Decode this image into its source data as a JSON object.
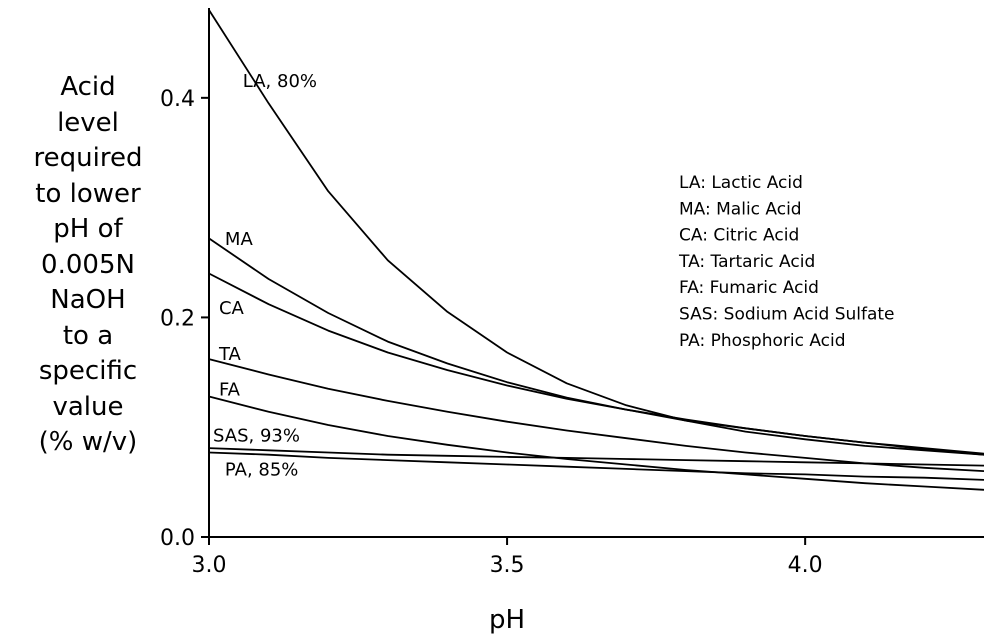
{
  "chart_data": {
    "type": "line",
    "title": "",
    "xlabel": "pH",
    "ylabel_lines": [
      "Acid",
      "level",
      "required",
      "to lower",
      "pH of",
      "0.005N",
      "NaOH",
      "to a",
      "specific",
      "value",
      "(% w/v)"
    ],
    "xlim": [
      3.0,
      4.3
    ],
    "ylim": [
      0.0,
      0.48
    ],
    "x_ticks": [
      3.0,
      3.5,
      4.0
    ],
    "x_tick_labels": [
      "3.0",
      "3.5",
      "4.0"
    ],
    "y_ticks": [
      0.0,
      0.2,
      0.4
    ],
    "y_tick_labels": [
      "0.0",
      "0.2",
      "0.4"
    ],
    "grid": false,
    "legend_position": "right",
    "legend": [
      "LA: Lactic Acid",
      "MA: Malic Acid",
      "CA: Citric Acid",
      "TA: Tartaric Acid",
      "FA: Fumaric Acid",
      "SAS: Sodium Acid Sulfate",
      "PA: Phosphoric Acid"
    ],
    "series": [
      {
        "name": "LA, 80%",
        "x": [
          3.0,
          3.1,
          3.2,
          3.3,
          3.4,
          3.5,
          3.6,
          3.7,
          3.8,
          3.9,
          4.0,
          4.1,
          4.2,
          4.3
        ],
        "y": [
          0.48,
          0.395,
          0.315,
          0.252,
          0.205,
          0.168,
          0.14,
          0.12,
          0.106,
          0.096,
          0.089,
          0.083,
          0.079,
          0.075
        ]
      },
      {
        "name": "MA",
        "x": [
          3.0,
          3.1,
          3.2,
          3.3,
          3.4,
          3.5,
          3.6,
          3.7,
          3.8,
          3.9,
          4.0,
          4.1,
          4.2,
          4.3
        ],
        "y": [
          0.272,
          0.235,
          0.204,
          0.178,
          0.158,
          0.141,
          0.127,
          0.116,
          0.106,
          0.099,
          0.092,
          0.086,
          0.081,
          0.076
        ]
      },
      {
        "name": "CA",
        "x": [
          3.0,
          3.1,
          3.2,
          3.3,
          3.4,
          3.5,
          3.6,
          3.7,
          3.8,
          3.9,
          4.0,
          4.1,
          4.2,
          4.3
        ],
        "y": [
          0.24,
          0.212,
          0.188,
          0.168,
          0.152,
          0.138,
          0.126,
          0.116,
          0.107,
          0.099,
          0.092,
          0.086,
          0.08,
          0.075
        ]
      },
      {
        "name": "TA",
        "x": [
          3.0,
          3.1,
          3.2,
          3.3,
          3.4,
          3.5,
          3.6,
          3.7,
          3.8,
          3.9,
          4.0,
          4.1,
          4.2,
          4.3
        ],
        "y": [
          0.162,
          0.148,
          0.135,
          0.124,
          0.114,
          0.105,
          0.097,
          0.09,
          0.083,
          0.077,
          0.072,
          0.067,
          0.063,
          0.06
        ]
      },
      {
        "name": "FA",
        "x": [
          3.0,
          3.1,
          3.2,
          3.3,
          3.4,
          3.5,
          3.6,
          3.7,
          3.8,
          3.9,
          4.0,
          4.1,
          4.2,
          4.3
        ],
        "y": [
          0.128,
          0.114,
          0.102,
          0.092,
          0.084,
          0.077,
          0.071,
          0.066,
          0.061,
          0.057,
          0.053,
          0.049,
          0.046,
          0.043
        ]
      },
      {
        "name": "SAS, 93%",
        "x": [
          3.0,
          3.1,
          3.2,
          3.3,
          3.4,
          3.5,
          3.6,
          3.7,
          3.8,
          3.9,
          4.0,
          4.1,
          4.2,
          4.3
        ],
        "y": [
          0.081,
          0.079,
          0.077,
          0.075,
          0.074,
          0.073,
          0.072,
          0.071,
          0.07,
          0.069,
          0.068,
          0.067,
          0.066,
          0.065
        ]
      },
      {
        "name": "PA, 85%",
        "x": [
          3.0,
          3.1,
          3.2,
          3.3,
          3.4,
          3.5,
          3.6,
          3.7,
          3.8,
          3.9,
          4.0,
          4.1,
          4.2,
          4.3
        ],
        "y": [
          0.077,
          0.075,
          0.072,
          0.07,
          0.068,
          0.066,
          0.064,
          0.062,
          0.06,
          0.058,
          0.057,
          0.055,
          0.054,
          0.052
        ]
      }
    ],
    "series_labels": [
      {
        "text": "LA, 80%",
        "x": 3.05,
        "y": 0.41
      },
      {
        "text": "MA",
        "x": 3.02,
        "y": 0.266
      },
      {
        "text": "CA",
        "x": 3.01,
        "y": 0.203
      },
      {
        "text": "TA",
        "x": 3.01,
        "y": 0.161
      },
      {
        "text": "FA",
        "x": 3.01,
        "y": 0.129
      },
      {
        "text": "SAS, 93%",
        "x": 3.0,
        "y": 0.087
      },
      {
        "text": "PA, 85%",
        "x": 3.02,
        "y": 0.056
      }
    ]
  }
}
